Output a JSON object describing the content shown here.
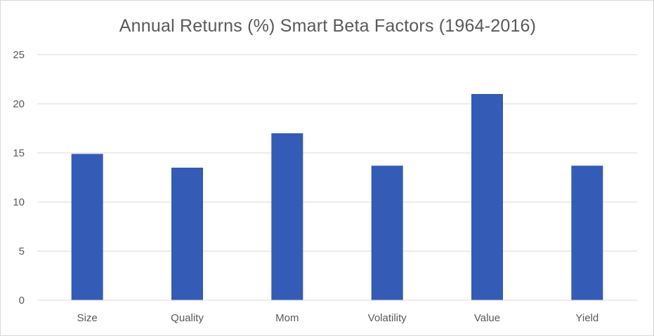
{
  "chart_data": {
    "type": "bar",
    "title": "Annual Returns (%) Smart Beta Factors (1964-2016)",
    "categories": [
      "Size",
      "Quality",
      "Mom",
      "Volatility",
      "Value",
      "Yield"
    ],
    "values": [
      14.9,
      13.5,
      17.0,
      13.7,
      21.0,
      13.7
    ],
    "ylim": [
      0,
      25
    ],
    "yticks": [
      "0",
      "5",
      "10",
      "15",
      "20",
      "25"
    ],
    "grid": true,
    "legend": "none",
    "colors": {
      "bar": "#345BB5",
      "grid": "#D9D9D9",
      "text": "#595959"
    }
  }
}
